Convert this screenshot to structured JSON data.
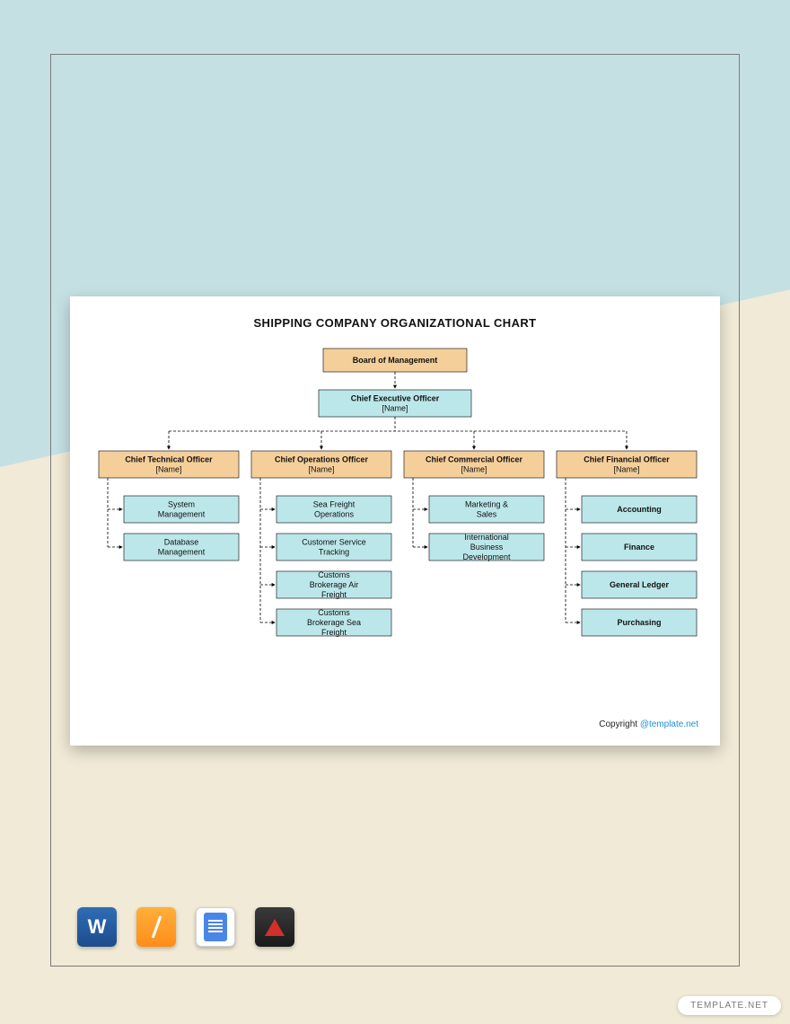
{
  "chart": {
    "title": "SHIPPING COMPANY ORGANIZATIONAL CHART",
    "colors": {
      "orange": "#f5cf9a",
      "blue": "#bce7ea",
      "line": "#000000",
      "card_bg": "#ffffff"
    },
    "name_placeholder": "[Name]",
    "root": {
      "label": "Board of Management"
    },
    "ceo": {
      "label": "Chief Executive Officer"
    },
    "officers": [
      {
        "label": "Chief Technical Officer",
        "depts": [
          "System Management",
          "Database Management"
        ]
      },
      {
        "label": "Chief Operations Officer",
        "depts": [
          "Sea Freight Operations",
          "Customer Service Tracking",
          "Customs Brokerage Air Freight",
          "Customs Brokerage Sea Freight"
        ]
      },
      {
        "label": "Chief Commercial Officer",
        "depts": [
          "Marketing & Sales",
          "International Business Development"
        ]
      },
      {
        "label": "Chief Financial Officer",
        "depts": [
          "Accounting",
          "Finance",
          "General Ledger",
          "Purchasing"
        ]
      }
    ],
    "copyright_prefix": "Copyright ",
    "copyright_link": "@template.net"
  },
  "app_icons": [
    "word",
    "pages",
    "docs",
    "pdf"
  ],
  "watermark": "TEMPLATE.NET"
}
